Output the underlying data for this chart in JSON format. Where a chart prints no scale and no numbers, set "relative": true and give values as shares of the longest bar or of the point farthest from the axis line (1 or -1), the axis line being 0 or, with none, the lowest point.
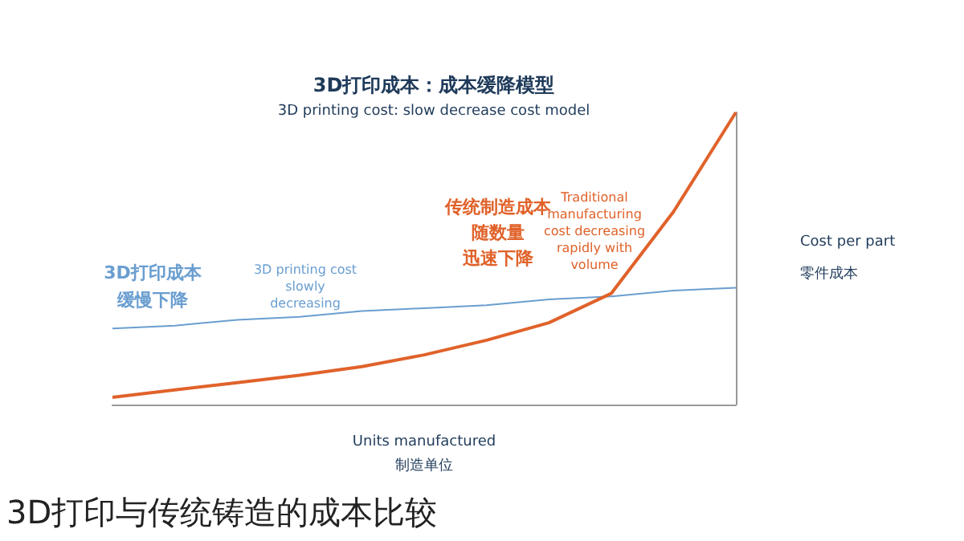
{
  "chart_data": {
    "type": "line",
    "relative": true,
    "title": "3D打印成本：成本缓降模型",
    "subtitle": "3D printing cost: slow decrease cost model",
    "xlabel": "Units manufactured\n制造单位",
    "ylabel": "Cost per part\n零件成本",
    "categories": [
      null,
      null,
      null,
      null,
      null,
      null,
      null,
      null,
      null,
      null,
      null
    ],
    "series": [
      {
        "color": "#6a9ed0",
        "values": [
          0.26,
          0.27,
          0.29,
          0.3,
          0.32,
          0.33,
          0.34,
          0.36,
          0.37,
          0.39,
          0.4
        ]
      },
      {
        "color": "#e0622a",
        "values": [
          0.025,
          0.05,
          0.075,
          0.1,
          0.13,
          0.17,
          0.22,
          0.28,
          0.38,
          0.66,
          1.0
        ]
      }
    ],
    "annotations": [
      "3D打印成本",
      "缓慢下降",
      "3D printing cost\nslowly\ndecreasing",
      "传统制造成本",
      "随数量",
      "迅速下降",
      "Traditional\nmanufacturing\ncost decreasing\nrapidly with\nvolume",
      "3D打印与传统铸造的成本比较"
    ],
    "grid": false,
    "marker": "none"
  }
}
